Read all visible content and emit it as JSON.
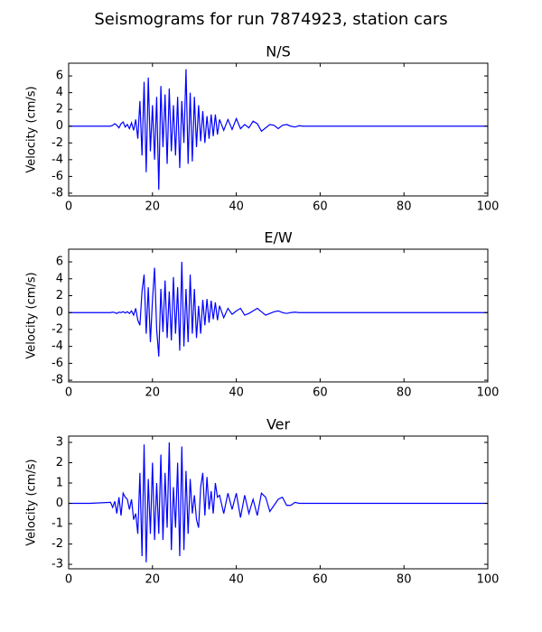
{
  "title": "Seismograms for run 7874923, station cars",
  "chart_data": [
    {
      "type": "line",
      "title": "N/S",
      "y_label": "Velocity (cm/s)",
      "x": [
        0,
        5,
        10,
        10.5,
        11,
        11.5,
        12,
        12.5,
        13,
        13.5,
        14,
        14.5,
        15,
        15.5,
        16,
        16.5,
        17,
        17.5,
        18,
        18.5,
        19,
        19.5,
        20,
        20.5,
        21,
        21.5,
        22,
        22.5,
        23,
        23.5,
        24,
        24.5,
        25,
        25.5,
        26,
        26.5,
        27,
        27.5,
        28,
        28.5,
        29,
        29.5,
        30,
        30.5,
        31,
        31.5,
        32,
        32.5,
        33,
        33.5,
        34,
        34.5,
        35,
        35.5,
        36,
        37,
        38,
        39,
        40,
        41,
        42,
        43,
        44,
        45,
        46,
        47,
        48,
        49,
        50,
        51,
        52,
        53,
        54,
        55,
        56,
        60,
        80,
        100
      ],
      "series": [
        {
          "color": "#0000ff",
          "values": [
            0,
            0,
            0,
            0.1,
            0.3,
            0.1,
            -0.2,
            0.3,
            0.5,
            -0.1,
            0.2,
            -0.3,
            0.4,
            -0.5,
            0.8,
            -1.5,
            3.0,
            -3.5,
            5.3,
            -5.5,
            5.8,
            -3,
            2.5,
            -4,
            3.5,
            -7.6,
            4.8,
            -2.5,
            3.8,
            -4.5,
            4.5,
            -3,
            2.5,
            -3.5,
            3.5,
            -5,
            3,
            -2,
            6.8,
            -4.5,
            4,
            -4.2,
            3.5,
            -2.5,
            2.5,
            -1.8,
            1.8,
            -2,
            1.2,
            -1.5,
            1.4,
            -1.2,
            1.4,
            -1,
            0.8,
            -0.5,
            0.8,
            -0.4,
            0.9,
            -0.3,
            0.2,
            -0.2,
            0.6,
            0.3,
            -0.6,
            -0.2,
            0.2,
            0.1,
            -0.3,
            0.1,
            0.2,
            0,
            -0.1,
            0.05,
            0,
            0,
            0,
            0
          ]
        }
      ],
      "xlim": [
        0,
        100
      ],
      "xticks": [
        0,
        20,
        40,
        60,
        80,
        100
      ],
      "ylim": [
        -8.33,
        7.52
      ],
      "yticks": [
        -8,
        -6,
        -4,
        -2,
        0,
        2,
        4,
        6
      ]
    },
    {
      "type": "line",
      "title": "E/W",
      "y_label": "Velocity (cm/s)",
      "x": [
        0,
        5,
        10,
        10.5,
        11,
        11.5,
        12,
        12.5,
        13,
        13.5,
        14,
        14.5,
        15,
        15.5,
        16,
        16.5,
        17,
        17.5,
        18,
        18.5,
        19,
        19.5,
        20,
        20.5,
        21,
        21.5,
        22,
        22.5,
        23,
        23.5,
        24,
        24.5,
        25,
        25.5,
        26,
        26.5,
        27,
        27.5,
        28,
        28.5,
        29,
        29.5,
        30,
        30.5,
        31,
        31.5,
        32,
        32.5,
        33,
        33.5,
        34,
        34.5,
        35,
        35.5,
        36,
        37,
        38,
        39,
        40,
        41,
        42,
        43,
        44,
        45,
        46,
        47,
        48,
        49,
        50,
        51,
        52,
        53,
        54,
        55,
        56,
        60,
        80,
        100
      ],
      "series": [
        {
          "color": "#0000ff",
          "values": [
            0,
            0,
            0,
            0.05,
            0,
            -0.1,
            0.05,
            0,
            0.1,
            -0.05,
            0.1,
            -0.1,
            0.2,
            -0.3,
            0.5,
            -0.9,
            -1.5,
            2.5,
            4.5,
            -2.5,
            3,
            -3.5,
            1.5,
            5.3,
            -2,
            -5.2,
            2.8,
            -2.3,
            3.8,
            -3,
            2.5,
            -3.3,
            4.2,
            -2.5,
            3,
            -4.5,
            6,
            -4,
            2.8,
            -3.5,
            4.5,
            -2.5,
            2.8,
            -3,
            0.8,
            -2.5,
            1.5,
            -1.5,
            1.6,
            -1.2,
            1.4,
            -0.8,
            1.2,
            -0.9,
            0.8,
            -0.6,
            0.5,
            -0.2,
            0.2,
            0.5,
            -0.3,
            -0.1,
            0.2,
            0.5,
            0.1,
            -0.3,
            -0.1,
            0.1,
            0.2,
            0,
            -0.1,
            0,
            0.05,
            0,
            0,
            0,
            0,
            0
          ]
        }
      ],
      "xlim": [
        0,
        100
      ],
      "xticks": [
        0,
        20,
        40,
        60,
        80,
        100
      ],
      "ylim": [
        -8.2,
        7.5
      ],
      "yticks": [
        -8,
        -6,
        -4,
        -2,
        0,
        2,
        4,
        6
      ]
    },
    {
      "type": "line",
      "title": "Ver",
      "y_label": "Velocity (cm/s)",
      "x": [
        0,
        5,
        10,
        10.5,
        11,
        11.5,
        12,
        12.5,
        13,
        13.5,
        14,
        14.5,
        15,
        15.5,
        16,
        16.5,
        17,
        17.5,
        18,
        18.5,
        19,
        19.5,
        20,
        20.5,
        21,
        21.5,
        22,
        22.5,
        23,
        23.5,
        24,
        24.5,
        25,
        25.5,
        26,
        26.5,
        27,
        27.5,
        28,
        28.5,
        29,
        29.5,
        30,
        30.5,
        31,
        31.5,
        32,
        32.5,
        33,
        33.5,
        34,
        34.5,
        35,
        35.5,
        36,
        37,
        38,
        39,
        40,
        41,
        42,
        43,
        44,
        45,
        46,
        47,
        48,
        49,
        50,
        51,
        52,
        53,
        54,
        55,
        56,
        60,
        80,
        100
      ],
      "series": [
        {
          "color": "#0000ff",
          "values": [
            0,
            0,
            0.05,
            -0.2,
            0.1,
            -0.5,
            0.3,
            -0.6,
            0.5,
            0.3,
            0.2,
            -0.3,
            0.2,
            -0.8,
            -0.5,
            -1.5,
            1.5,
            -2.6,
            2.9,
            -2.9,
            1.2,
            -1.5,
            2,
            -1.8,
            1,
            -1.5,
            2.4,
            -1.8,
            1.5,
            -1.2,
            3,
            -2.3,
            0.8,
            -1.2,
            2,
            -2.6,
            2.8,
            -2.3,
            1.6,
            -1.5,
            1.2,
            -0.5,
            0.4,
            -0.8,
            -1.2,
            0.8,
            1.5,
            -0.6,
            1.3,
            -0.3,
            0.6,
            -0.5,
            1,
            0.3,
            0.4,
            -0.5,
            0.5,
            -0.3,
            0.5,
            -0.7,
            0.4,
            -0.5,
            0.2,
            -0.6,
            0.5,
            0.3,
            -0.4,
            -0.1,
            0.2,
            0.3,
            -0.1,
            -0.1,
            0.05,
            0,
            0,
            0,
            0,
            0
          ]
        }
      ],
      "xlim": [
        0,
        100
      ],
      "xticks": [
        0,
        20,
        40,
        60,
        80,
        100
      ],
      "ylim": [
        -3.22,
        3.31
      ],
      "yticks": [
        -3,
        -2,
        -1,
        0,
        1,
        2,
        3
      ]
    }
  ]
}
